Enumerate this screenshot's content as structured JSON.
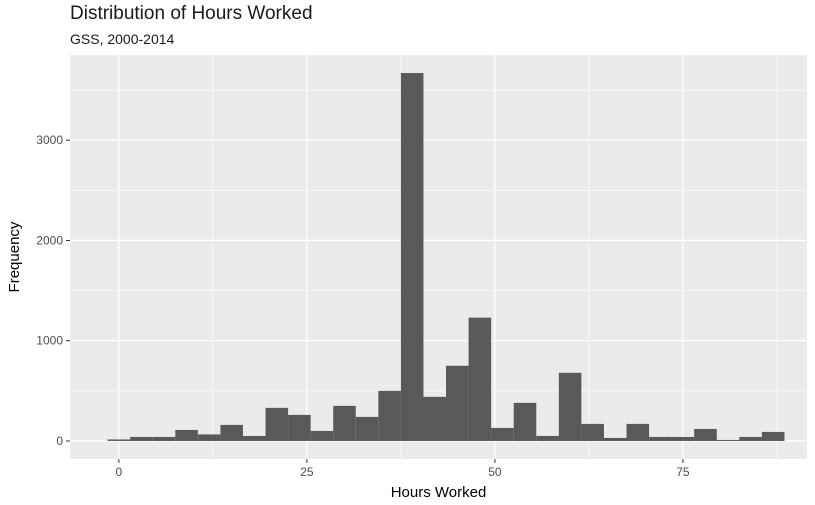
{
  "chart_data": {
    "type": "bar",
    "title": "Distribution of Hours Worked",
    "subtitle": "GSS, 2000-2014",
    "xlabel": "Hours Worked",
    "ylabel": "Frequency",
    "xlim": [
      -6.5,
      91.5
    ],
    "ylim": [
      -180,
      3850
    ],
    "x_ticks": [
      0,
      25,
      50,
      75
    ],
    "y_ticks": [
      0,
      1000,
      2000,
      3000
    ],
    "grid": true,
    "bin_width": 3,
    "x": [
      0,
      3,
      6,
      9,
      12,
      15,
      18,
      21,
      24,
      27,
      30,
      33,
      36,
      39,
      42,
      45,
      48,
      51,
      54,
      57,
      60,
      63,
      66,
      69,
      72,
      75,
      78,
      81,
      84,
      87
    ],
    "values": [
      15,
      40,
      40,
      110,
      65,
      160,
      50,
      330,
      260,
      100,
      350,
      240,
      500,
      3670,
      440,
      750,
      1230,
      130,
      380,
      50,
      680,
      170,
      30,
      170,
      40,
      40,
      120,
      10,
      40,
      90
    ],
    "colors": {
      "panel": "#ebebeb",
      "bar": "#595959",
      "grid": "#ffffff",
      "text": "#4d4d4d"
    }
  }
}
